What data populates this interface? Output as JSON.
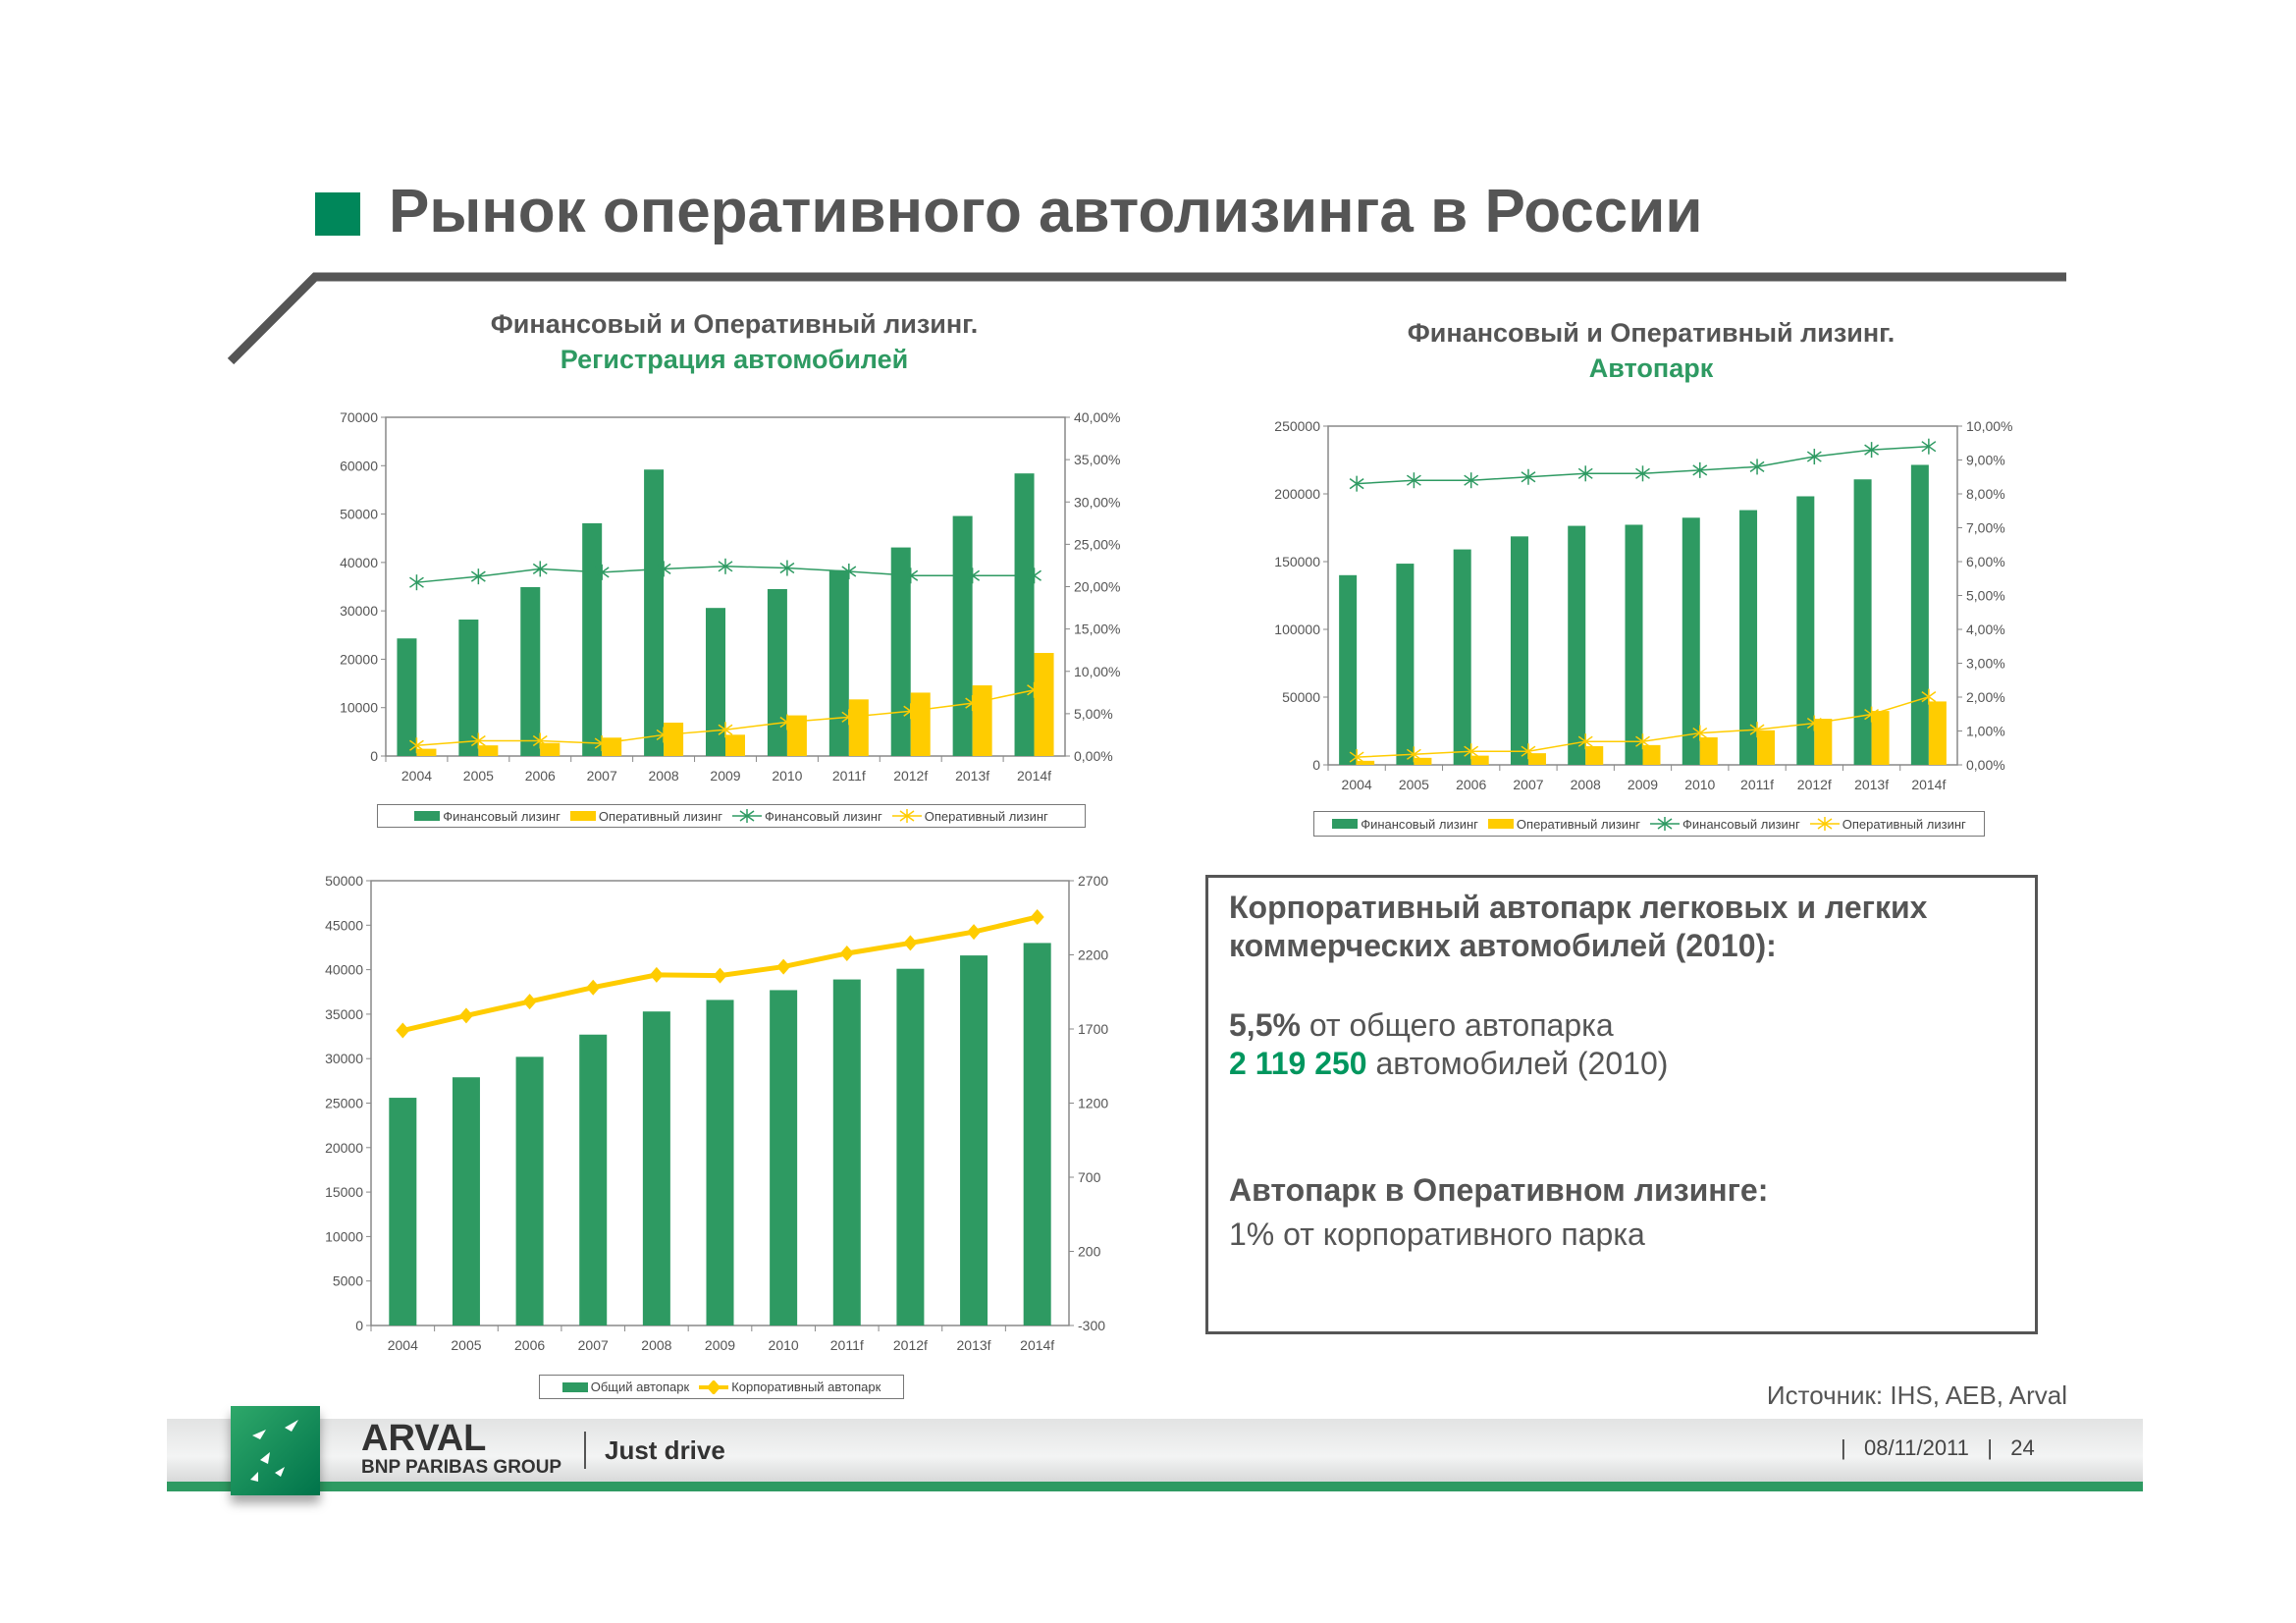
{
  "title": "Рынок оперативного автолизинга в России",
  "chart_data": [
    {
      "type": "bar+line",
      "title": "Финансовый и Оперативный лизинг.",
      "subtitle": "Регистрация автомобилей",
      "categories": [
        "2004",
        "2005",
        "2006",
        "2007",
        "2008",
        "2009",
        "2010",
        "2011f",
        "2012f",
        "2013f",
        "2014f"
      ],
      "y_left": {
        "min": 0,
        "max": 70000,
        "ticks": [
          "0",
          "10000",
          "20000",
          "30000",
          "40000",
          "50000",
          "60000",
          "70000"
        ]
      },
      "y_right": {
        "min": 0,
        "max": 40,
        "ticks": [
          "0,00%",
          "5,00%",
          "10,00%",
          "15,00%",
          "20,00%",
          "25,00%",
          "30,00%",
          "35,00%",
          "40,00%"
        ]
      },
      "legend": "bottom",
      "series": [
        {
          "name": "Финансовый лизинг",
          "type": "bar",
          "axis": "left",
          "color": "#2e9a62",
          "values": [
            24300,
            28200,
            34900,
            48100,
            59200,
            30600,
            34500,
            38400,
            43100,
            49600,
            58400
          ]
        },
        {
          "name": "Оперативный лизинг",
          "type": "bar",
          "axis": "left",
          "color": "#ffcc00",
          "values": [
            1500,
            2200,
            2700,
            3800,
            6900,
            4400,
            8400,
            11700,
            13100,
            14600,
            21300
          ]
        },
        {
          "name": "Финансовый лизинг",
          "type": "line",
          "axis": "right",
          "marker": "asterisk",
          "color": "#2e9a62",
          "values": [
            20.5,
            21.2,
            22.1,
            21.7,
            22.1,
            22.4,
            22.2,
            21.8,
            21.3,
            21.3,
            21.3
          ]
        },
        {
          "name": "Оперативный лизинг",
          "type": "line",
          "axis": "right",
          "marker": "asterisk",
          "color": "#ffcc00",
          "values": [
            1.25,
            1.8,
            1.8,
            1.5,
            2.5,
            3.1,
            4.0,
            4.6,
            5.3,
            6.25,
            7.8
          ]
        }
      ]
    },
    {
      "type": "bar+line",
      "title": "Финансовый и Оперативный лизинг.",
      "subtitle": "Автопарк",
      "categories": [
        "2004",
        "2005",
        "2006",
        "2007",
        "2008",
        "2009",
        "2010",
        "2011f",
        "2012f",
        "2013f",
        "2014f"
      ],
      "y_left": {
        "min": 0,
        "max": 250000,
        "ticks": [
          "0",
          "50000",
          "100000",
          "150000",
          "200000",
          "250000"
        ]
      },
      "y_right": {
        "min": 0,
        "max": 10,
        "ticks": [
          "0,00%",
          "1,00%",
          "2,00%",
          "3,00%",
          "4,00%",
          "5,00%",
          "6,00%",
          "7,00%",
          "8,00%",
          "9,00%",
          "10,00%"
        ]
      },
      "legend": "bottom",
      "series": [
        {
          "name": "Финансовый лизинг",
          "type": "bar",
          "axis": "left",
          "color": "#2e9a62",
          "values": [
            140000,
            148500,
            159000,
            168600,
            176400,
            177200,
            182400,
            188000,
            198200,
            210700,
            221400
          ]
        },
        {
          "name": "Оперативный лизинг",
          "type": "bar",
          "axis": "left",
          "color": "#ffcc00",
          "values": [
            3000,
            5200,
            6800,
            8600,
            13800,
            14600,
            20300,
            25500,
            34000,
            39800,
            46800
          ]
        },
        {
          "name": "Финансовый лизинг",
          "type": "line",
          "axis": "right",
          "marker": "asterisk",
          "color": "#2e9a62",
          "values": [
            8.3,
            8.4,
            8.4,
            8.5,
            8.6,
            8.6,
            8.7,
            8.8,
            9.1,
            9.3,
            9.4
          ]
        },
        {
          "name": "Оперативный лизинг",
          "type": "line",
          "axis": "right",
          "marker": "asterisk",
          "color": "#ffcc00",
          "values": [
            0.23,
            0.31,
            0.4,
            0.4,
            0.69,
            0.69,
            0.94,
            1.04,
            1.23,
            1.49,
            2.01
          ]
        }
      ]
    },
    {
      "type": "bar+line",
      "title": "",
      "subtitle": "",
      "categories": [
        "2004",
        "2005",
        "2006",
        "2007",
        "2008",
        "2009",
        "2010",
        "2011f",
        "2012f",
        "2013f",
        "2014f"
      ],
      "y_left": {
        "min": 0,
        "max": 50000,
        "ticks": [
          "0",
          "5000",
          "10000",
          "15000",
          "20000",
          "25000",
          "30000",
          "35000",
          "40000",
          "45000",
          "50000"
        ]
      },
      "y_right": {
        "min": -300,
        "max": 2700,
        "ticks": [
          "-300",
          "200",
          "700",
          "1200",
          "1700",
          "2200",
          "2700"
        ]
      },
      "legend": "bottom",
      "series": [
        {
          "name": "Общий автопарк",
          "type": "bar",
          "axis": "left",
          "color": "#2e9a62",
          "values": [
            25600,
            27900,
            30200,
            32700,
            35300,
            36600,
            37700,
            38900,
            40100,
            41600,
            43000
          ]
        },
        {
          "name": "Корпоративный автопарк",
          "type": "line",
          "axis": "right",
          "marker": "diamond",
          "color": "#ffcc00",
          "values": [
            1690,
            1790,
            1885,
            1980,
            2065,
            2060,
            2120,
            2210,
            2280,
            2355,
            2455
          ]
        }
      ]
    }
  ],
  "info": {
    "heading_line1": "Корпоративный автопарк легковых и легких",
    "heading_line2": "коммерческих автомобилей (2010):",
    "share_value": "5,5%",
    "share_text": " от общего автопарка",
    "count_value": "2 119 250",
    "count_text": " автомобилей (2010)",
    "oper_heading": "Автопарк  в Оперативном лизинге:",
    "oper_text": "1% от корпоративного парка",
    "accent_color": "#00965e"
  },
  "source": "Источник: IHS, AEB, Arval",
  "footer": {
    "brand": "ARVAL",
    "brand_sub": "BNP PARIBAS GROUP",
    "tagline": "Just drive",
    "date": "|   08/11/2011   |   24"
  }
}
